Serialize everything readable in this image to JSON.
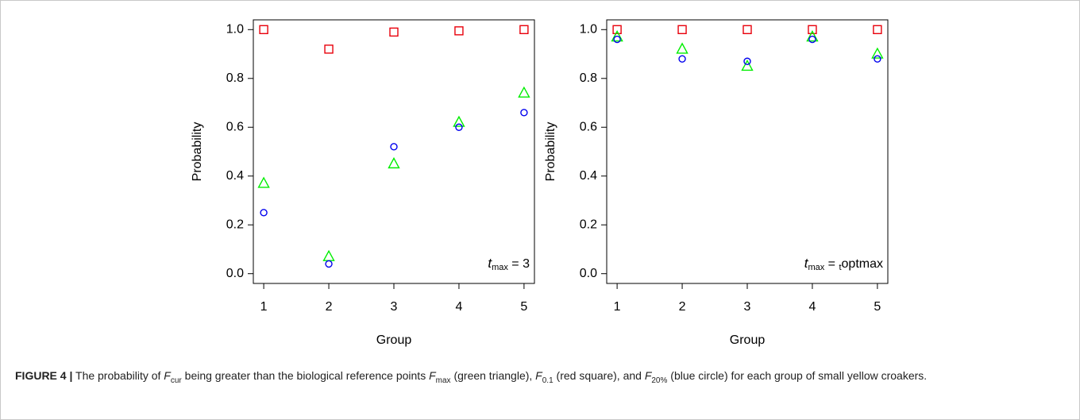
{
  "chart_data": [
    {
      "type": "scatter",
      "x_label": "Group",
      "y_label": "Probability",
      "annotation": [
        "t",
        "max",
        " = 3"
      ],
      "x": [
        1,
        2,
        3,
        4,
        5
      ],
      "xlim": [
        0.84,
        5.16
      ],
      "xticks": [
        1,
        2,
        3,
        4,
        5
      ],
      "ylim": [
        -0.04,
        1.04
      ],
      "yticks": [
        {
          "value": 0,
          "label": "0.0"
        },
        0.2,
        0.4,
        0.6,
        0.8,
        {
          "value": 1,
          "label": "1.0"
        }
      ],
      "series": [
        {
          "marker": "square",
          "color": "#e8000b",
          "values": [
            1.0,
            0.92,
            0.99,
            0.995,
            1.0
          ]
        },
        {
          "marker": "triangle",
          "color": "#00ee00",
          "values": [
            0.37,
            0.07,
            0.45,
            0.62,
            0.74
          ]
        },
        {
          "marker": "circle",
          "color": "#0000ee",
          "values": [
            0.25,
            0.04,
            0.52,
            0.6,
            0.66
          ]
        }
      ]
    },
    {
      "type": "scatter",
      "x_label": "Group",
      "y_label": "Probability",
      "annotation": [
        "t",
        "max",
        " = ",
        "t",
        "optmax"
      ],
      "x": [
        1,
        2,
        3,
        4,
        5
      ],
      "xlim": [
        0.84,
        5.16
      ],
      "xticks": [
        1,
        2,
        3,
        4,
        5
      ],
      "ylim": [
        -0.04,
        1.04
      ],
      "yticks": [
        {
          "value": 0,
          "label": "0.0"
        },
        0.2,
        0.4,
        0.6,
        0.8,
        {
          "value": 1,
          "label": "1.0"
        }
      ],
      "series": [
        {
          "marker": "square",
          "color": "#e8000b",
          "values": [
            1.0,
            1.0,
            1.0,
            1.0,
            1.0
          ]
        },
        {
          "marker": "triangle",
          "color": "#00ee00",
          "values": [
            0.97,
            0.92,
            0.85,
            0.97,
            0.9
          ]
        },
        {
          "marker": "circle",
          "color": "#0000ee",
          "values": [
            0.96,
            0.88,
            0.87,
            0.96,
            0.88
          ]
        }
      ]
    }
  ],
  "caption": [
    "FIGURE 4 |",
    " The probability of ",
    "F",
    "cur",
    " being greater than the biological reference points ",
    "F",
    "max",
    " (green triangle), ",
    "F",
    "0.1",
    " (red square), and ",
    "F",
    "20%",
    " (blue circle) for each group of small yellow croakers."
  ]
}
